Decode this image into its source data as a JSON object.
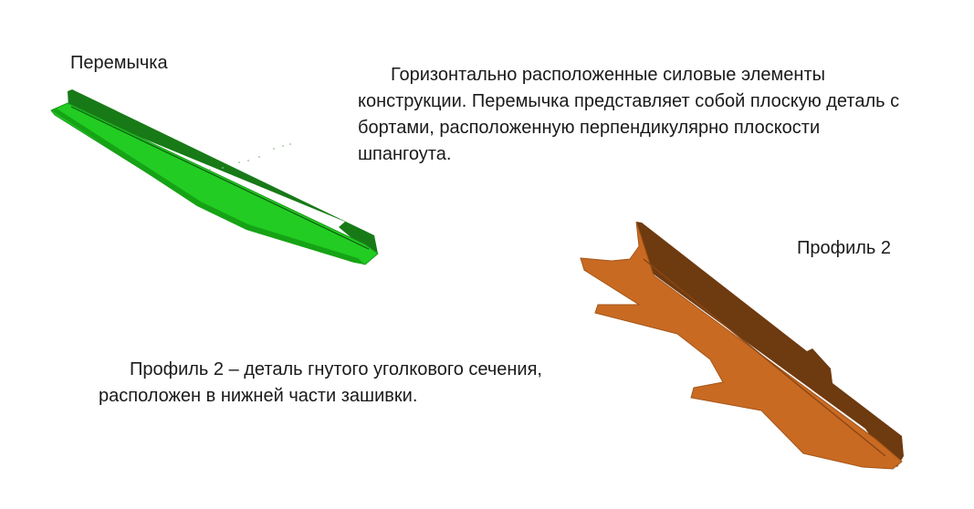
{
  "labels": {
    "peremychka": "Перемычка",
    "profile2": "Профиль 2"
  },
  "descriptions": {
    "peremychka": "Горизонтально расположенные силовые элементы конструкции. Перемычка представляет собой плоскую деталь с бортами, расположенную перпендикулярно плоскости шпангоута.",
    "profile2": "Профиль 2 – деталь гнутого уголкового сечения, расположен в нижней части зашивки."
  },
  "colors": {
    "peremychka_part": "#22cc22",
    "peremychka_flange": "#177a17",
    "profile2_part": "#c96a22",
    "profile2_flange": "#6e3a10"
  }
}
